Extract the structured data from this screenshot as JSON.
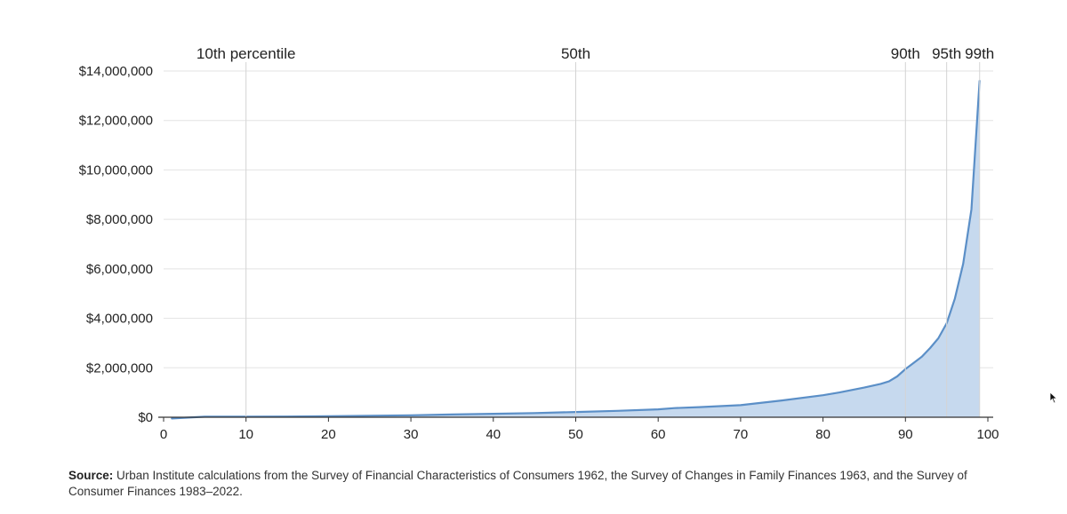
{
  "chart_data": {
    "type": "area",
    "title": "",
    "xlabel": "",
    "ylabel": "",
    "xlim": [
      0,
      100
    ],
    "ylim": [
      0,
      14000000
    ],
    "x_ticks": [
      0,
      10,
      20,
      30,
      40,
      50,
      60,
      70,
      80,
      90,
      100
    ],
    "x_tick_labels": [
      "0",
      "10",
      "20",
      "30",
      "40",
      "50",
      "60",
      "70",
      "80",
      "90",
      "100"
    ],
    "y_ticks": [
      0,
      2000000,
      4000000,
      6000000,
      8000000,
      10000000,
      12000000,
      14000000
    ],
    "y_tick_labels": [
      "$0",
      "$2,000,000",
      "$4,000,000",
      "$6,000,000",
      "$8,000,000",
      "$10,000,000",
      "$12,000,000",
      "$14,000,000"
    ],
    "grid": true,
    "reference_lines": [
      {
        "x": 10,
        "label": "10th percentile"
      },
      {
        "x": 50,
        "label": "50th"
      },
      {
        "x": 90,
        "label": "90th"
      },
      {
        "x": 95,
        "label": "95th"
      },
      {
        "x": 99,
        "label": "99th"
      }
    ],
    "series": [
      {
        "color": "#5b8fc7",
        "fill": "#c6d9ee",
        "x": [
          1,
          5,
          10,
          15,
          20,
          25,
          30,
          35,
          40,
          45,
          50,
          55,
          60,
          62,
          65,
          70,
          75,
          80,
          82,
          85,
          87,
          88,
          89,
          90,
          91,
          92,
          93,
          94,
          95,
          96,
          97,
          98,
          99
        ],
        "y": [
          -50000,
          20000,
          25000,
          30000,
          40000,
          60000,
          80000,
          110000,
          140000,
          170000,
          210000,
          260000,
          320000,
          370000,
          410000,
          490000,
          680000,
          890000,
          1000000,
          1200000,
          1350000,
          1450000,
          1650000,
          1950000,
          2200000,
          2450000,
          2800000,
          3200000,
          3800000,
          4800000,
          6200000,
          8400000,
          13600000
        ]
      }
    ]
  },
  "source": {
    "label": "Source:",
    "text": " Urban Institute calculations from the Survey of Financial Characteristics of Consumers 1962, the Survey of Changes in Family Finances 1963, and the Survey of Consumer Finances 1983–2022."
  }
}
